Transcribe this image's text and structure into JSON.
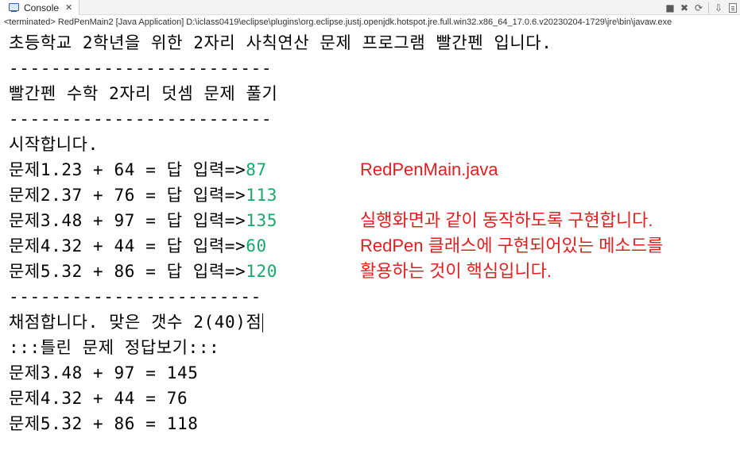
{
  "tab": {
    "label": "Console",
    "close": "✕",
    "icon": "console-icon"
  },
  "toolbar": {
    "icons": [
      "remove-launch-icon",
      "remove-all-terminated-icon",
      "clear-console-icon",
      "scroll-lock-icon",
      "word-wrap-icon"
    ],
    "remove": "■",
    "remove_all": "✖",
    "clear": "⟳",
    "scroll": "⇩",
    "more": "…"
  },
  "terminated_line": "<terminated> RedPenMain2 [Java Application] D:\\iclass0419\\eclipse\\plugins\\org.eclipse.justj.openjdk.hotspot.jre.full.win32.x86_64_17.0.6.v20230204-1729\\jre\\bin\\javaw.exe",
  "console": {
    "title": "초등학교 2학년을 위한 2자리 사칙연산 문제 프로그램 빨간펜 입니다.",
    "divider1": "-------------------------",
    "subtitle": "빨간펜 수학 2자리 덧셈 문제 풀기",
    "divider2": "-------------------------",
    "start": "시작합니다.",
    "problems": [
      {
        "prompt": "문제1.23 + 64 = 답 입력=>",
        "answer": "87"
      },
      {
        "prompt": "문제2.37 + 76 = 답 입력=>",
        "answer": "113"
      },
      {
        "prompt": "문제3.48 + 97 = 답 입력=>",
        "answer": "135"
      },
      {
        "prompt": "문제4.32 + 44 = 답 입력=>",
        "answer": "60"
      },
      {
        "prompt": "문제5.32 + 86 = 답 입력=>",
        "answer": "120"
      }
    ],
    "divider3": "------------------------",
    "score": "채점합니다. 맞은 갯수 2(40)점",
    "wrong_header": ":::틀린 문제 정답보기:::",
    "wrong": [
      "문제3.48 + 97 = 145",
      "문제4.32 + 44 = 76",
      "문제5.32 + 86 = 118"
    ]
  },
  "notes": {
    "filename": "RedPenMain.java",
    "line1": "실행화면과 같이 동작하도록 구현합니다.",
    "line2": "RedPen 클래스에 구현되어있는 메소드를",
    "line3": "활용하는 것이 핵심입니다."
  },
  "colors": {
    "input": "#17a86a",
    "note": "#e02020"
  }
}
